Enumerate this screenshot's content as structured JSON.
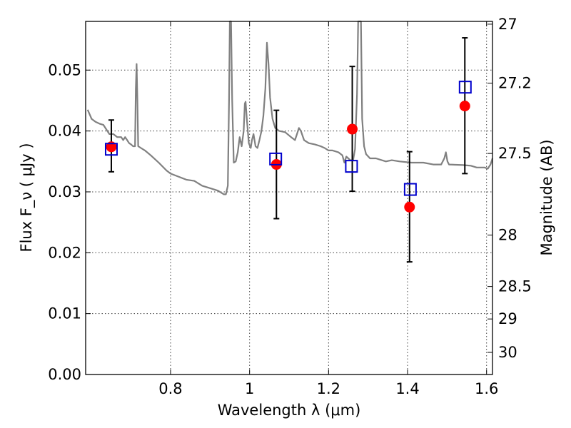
{
  "chart_data": {
    "type": "scatter",
    "xlabel": "Wavelength  λ (μm)",
    "ylabel": "Flux  F_ν  ( μJy )",
    "y2label": "Magnitude (AB)",
    "xlim": [
      0.585,
      1.615
    ],
    "ylim": [
      0.0,
      0.058
    ],
    "grid": true,
    "x_ticks": [
      {
        "value": 0.8,
        "label": "0.8"
      },
      {
        "value": 1.0,
        "label": "1"
      },
      {
        "value": 1.2,
        "label": "1.2"
      },
      {
        "value": 1.4,
        "label": "1.4"
      },
      {
        "value": 1.6,
        "label": "1.6"
      }
    ],
    "y_ticks": [
      {
        "value": 0.0,
        "label": "0.00"
      },
      {
        "value": 0.01,
        "label": "0.01"
      },
      {
        "value": 0.02,
        "label": "0.02"
      },
      {
        "value": 0.03,
        "label": "0.03"
      },
      {
        "value": 0.04,
        "label": "0.04"
      },
      {
        "value": 0.05,
        "label": "0.05"
      }
    ],
    "y2_ticks": [
      {
        "mag": 27.0,
        "label": "27"
      },
      {
        "mag": 27.2,
        "label": "27.2"
      },
      {
        "mag": 27.5,
        "label": "27.5"
      },
      {
        "mag": 28.0,
        "label": "28"
      },
      {
        "mag": 28.5,
        "label": "28.5"
      },
      {
        "mag": 29.0,
        "label": "29"
      },
      {
        "mag": 30.0,
        "label": "30"
      }
    ],
    "series": [
      {
        "kind": "line",
        "color": "#808080",
        "points": [
          [
            0.59,
            0.0435
          ],
          [
            0.6,
            0.042
          ],
          [
            0.61,
            0.0415
          ],
          [
            0.62,
            0.0412
          ],
          [
            0.63,
            0.041
          ],
          [
            0.64,
            0.04
          ],
          [
            0.645,
            0.0395
          ],
          [
            0.655,
            0.0395
          ],
          [
            0.665,
            0.039
          ],
          [
            0.675,
            0.039
          ],
          [
            0.68,
            0.0385
          ],
          [
            0.685,
            0.039
          ],
          [
            0.69,
            0.0385
          ],
          [
            0.695,
            0.038
          ],
          [
            0.7,
            0.0378
          ],
          [
            0.705,
            0.0375
          ],
          [
            0.71,
            0.0375
          ],
          [
            0.712,
            0.047
          ],
          [
            0.714,
            0.051
          ],
          [
            0.716,
            0.045
          ],
          [
            0.718,
            0.0375
          ],
          [
            0.725,
            0.0372
          ],
          [
            0.735,
            0.0368
          ],
          [
            0.75,
            0.036
          ],
          [
            0.77,
            0.0348
          ],
          [
            0.79,
            0.0335
          ],
          [
            0.8,
            0.033
          ],
          [
            0.82,
            0.0325
          ],
          [
            0.84,
            0.032
          ],
          [
            0.86,
            0.0318
          ],
          [
            0.88,
            0.031
          ],
          [
            0.9,
            0.0306
          ],
          [
            0.92,
            0.0302
          ],
          [
            0.935,
            0.0296
          ],
          [
            0.94,
            0.0296
          ],
          [
            0.945,
            0.031
          ],
          [
            0.948,
            0.045
          ],
          [
            0.95,
            0.058
          ],
          [
            0.953,
            0.058
          ],
          [
            0.956,
            0.045
          ],
          [
            0.96,
            0.0348
          ],
          [
            0.965,
            0.035
          ],
          [
            0.97,
            0.0365
          ],
          [
            0.975,
            0.039
          ],
          [
            0.98,
            0.0375
          ],
          [
            0.985,
            0.04
          ],
          [
            0.988,
            0.0445
          ],
          [
            0.99,
            0.0448
          ],
          [
            0.993,
            0.042
          ],
          [
            0.998,
            0.038
          ],
          [
            1.003,
            0.0372
          ],
          [
            1.006,
            0.0385
          ],
          [
            1.01,
            0.0395
          ],
          [
            1.015,
            0.0375
          ],
          [
            1.02,
            0.0372
          ],
          [
            1.025,
            0.0385
          ],
          [
            1.03,
            0.04
          ],
          [
            1.035,
            0.0425
          ],
          [
            1.04,
            0.047
          ],
          [
            1.044,
            0.0545
          ],
          [
            1.048,
            0.051
          ],
          [
            1.052,
            0.0455
          ],
          [
            1.058,
            0.042
          ],
          [
            1.065,
            0.0405
          ],
          [
            1.075,
            0.04
          ],
          [
            1.09,
            0.0398
          ],
          [
            1.105,
            0.039
          ],
          [
            1.115,
            0.0385
          ],
          [
            1.12,
            0.0395
          ],
          [
            1.125,
            0.0405
          ],
          [
            1.13,
            0.04
          ],
          [
            1.138,
            0.0385
          ],
          [
            1.15,
            0.038
          ],
          [
            1.165,
            0.0378
          ],
          [
            1.18,
            0.0375
          ],
          [
            1.19,
            0.0372
          ],
          [
            1.2,
            0.0368
          ],
          [
            1.21,
            0.0368
          ],
          [
            1.225,
            0.0365
          ],
          [
            1.235,
            0.036
          ],
          [
            1.24,
            0.0348
          ],
          [
            1.245,
            0.0358
          ],
          [
            1.25,
            0.0355
          ],
          [
            1.255,
            0.0352
          ],
          [
            1.262,
            0.0352
          ],
          [
            1.267,
            0.037
          ],
          [
            1.272,
            0.046
          ],
          [
            1.275,
            0.058
          ],
          [
            1.282,
            0.058
          ],
          [
            1.285,
            0.042
          ],
          [
            1.29,
            0.0375
          ],
          [
            1.295,
            0.0362
          ],
          [
            1.305,
            0.0355
          ],
          [
            1.32,
            0.0355
          ],
          [
            1.345,
            0.035
          ],
          [
            1.36,
            0.0352
          ],
          [
            1.38,
            0.035
          ],
          [
            1.41,
            0.0348
          ],
          [
            1.44,
            0.0348
          ],
          [
            1.465,
            0.0345
          ],
          [
            1.485,
            0.0345
          ],
          [
            1.493,
            0.0355
          ],
          [
            1.497,
            0.0365
          ],
          [
            1.501,
            0.035
          ],
          [
            1.505,
            0.0345
          ],
          [
            1.54,
            0.0344
          ],
          [
            1.56,
            0.0343
          ],
          [
            1.575,
            0.034
          ],
          [
            1.595,
            0.034
          ],
          [
            1.603,
            0.0338
          ],
          [
            1.61,
            0.0345
          ],
          [
            1.615,
            0.0355
          ]
        ]
      },
      {
        "kind": "errorbar",
        "color": "#000000",
        "points": [
          {
            "x": 0.65,
            "y": 0.0374,
            "lo": 0.0333,
            "hi": 0.0418
          },
          {
            "x": 1.068,
            "y": 0.0345,
            "lo": 0.0256,
            "hi": 0.0434
          },
          {
            "x": 1.26,
            "y": 0.0403,
            "lo": 0.0301,
            "hi": 0.0506
          },
          {
            "x": 1.405,
            "y": 0.0275,
            "lo": 0.0185,
            "hi": 0.0366
          },
          {
            "x": 1.545,
            "y": 0.0441,
            "lo": 0.033,
            "hi": 0.0553
          }
        ]
      },
      {
        "kind": "filled-circle",
        "color": "#ff0000",
        "points": [
          [
            0.65,
            0.0374
          ],
          [
            1.068,
            0.0345
          ],
          [
            1.26,
            0.0403
          ],
          [
            1.405,
            0.0275
          ],
          [
            1.545,
            0.0441
          ]
        ]
      },
      {
        "kind": "open-square",
        "color": "#0000cc",
        "points": [
          [
            0.65,
            0.037
          ],
          [
            1.066,
            0.0354
          ],
          [
            1.258,
            0.0342
          ],
          [
            1.407,
            0.0304
          ],
          [
            1.546,
            0.0472
          ]
        ]
      }
    ]
  }
}
